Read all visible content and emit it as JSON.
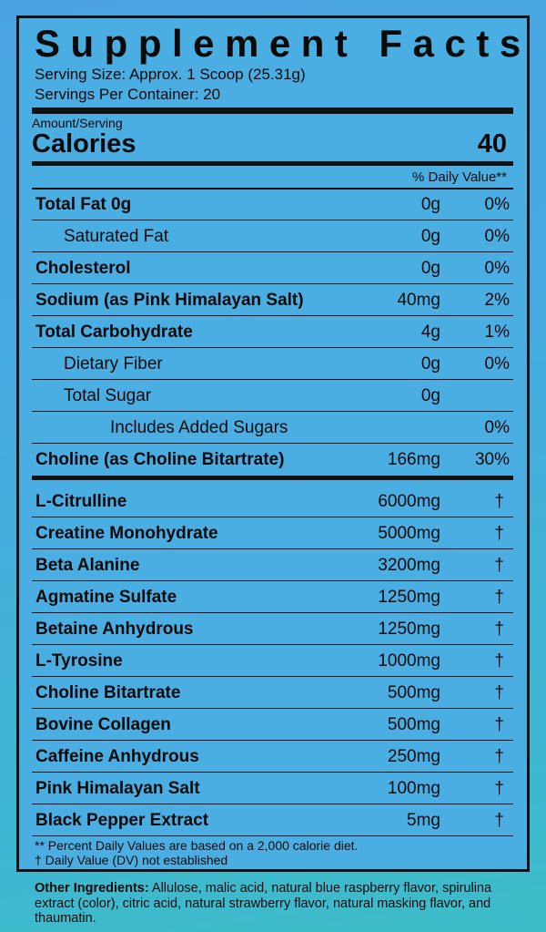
{
  "title": "Supplement Facts",
  "serving_size": "Serving Size: Approx. 1 Scoop (25.31g)",
  "servings_per_container": "Servings Per Container: 20",
  "amount_serving": "Amount/Serving",
  "calories_label": "Calories",
  "calories_value": "40",
  "daily_value_header": "% Daily Value**",
  "nutrients": [
    {
      "name": "Total Fat 0g",
      "amount": "0g",
      "dv": "0%",
      "bold": true,
      "indent": 0
    },
    {
      "name": "Saturated Fat",
      "amount": "0g",
      "dv": "0%",
      "bold": false,
      "indent": 1
    },
    {
      "name": "Cholesterol",
      "amount": "0g",
      "dv": "0%",
      "bold": true,
      "indent": 0
    },
    {
      "name": "Sodium (as Pink Himalayan Salt)",
      "amount": "40mg",
      "dv": "2%",
      "bold": true,
      "indent": 0
    },
    {
      "name": "Total Carbohydrate",
      "amount": "4g",
      "dv": "1%",
      "bold": true,
      "indent": 0
    },
    {
      "name": "Dietary Fiber",
      "amount": "0g",
      "dv": "0%",
      "bold": false,
      "indent": 1
    },
    {
      "name": "Total Sugar",
      "amount": "0g",
      "dv": "",
      "bold": false,
      "indent": 1
    },
    {
      "name": "Includes Added Sugars",
      "amount": "",
      "dv": "0%",
      "bold": false,
      "indent": 2
    },
    {
      "name": "Choline (as Choline Bitartrate)",
      "amount": "166mg",
      "dv": "30%",
      "bold": true,
      "indent": 0
    }
  ],
  "ingredients": [
    {
      "name": "L-Citrulline",
      "amount": "6000mg",
      "dv": "†"
    },
    {
      "name": "Creatine Monohydrate",
      "amount": "5000mg",
      "dv": "†"
    },
    {
      "name": "Beta Alanine",
      "amount": "3200mg",
      "dv": "†"
    },
    {
      "name": "Agmatine Sulfate",
      "amount": "1250mg",
      "dv": "†"
    },
    {
      "name": "Betaine Anhydrous",
      "amount": "1250mg",
      "dv": "†"
    },
    {
      "name": "L-Tyrosine",
      "amount": "1000mg",
      "dv": "†"
    },
    {
      "name": "Choline Bitartrate",
      "amount": "500mg",
      "dv": "†"
    },
    {
      "name": "Bovine Collagen",
      "amount": "500mg",
      "dv": "†"
    },
    {
      "name": "Caffeine Anhydrous",
      "amount": "250mg",
      "dv": "†"
    },
    {
      "name": "Pink Himalayan Salt",
      "amount": "100mg",
      "dv": "†"
    },
    {
      "name": "Black Pepper Extract",
      "amount": "5mg",
      "dv": "†"
    }
  ],
  "footnote_1": "** Percent Daily Values are based on a 2,000 calorie diet.",
  "footnote_2": "† Daily Value (DV) not established",
  "other_label": "Other Ingredients:",
  "other_text": " Allulose, malic acid, natural blue raspberry flavor, spirulina extract (color), citric acid, natural strawberry flavor, natural masking flavor, and thaumatin.",
  "colors": {
    "label_bg": "#4aaee3",
    "ink": "#111111"
  }
}
